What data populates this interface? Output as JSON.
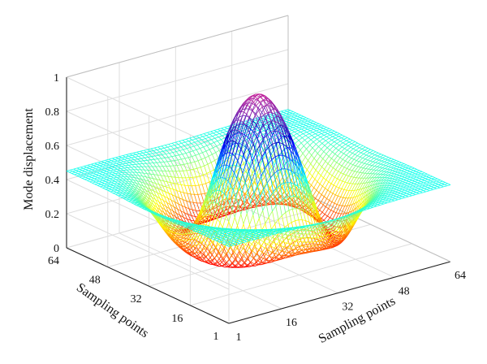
{
  "chart_data": {
    "type": "surface",
    "style": "mesh (wireframe), colored by height, jet-like colormap",
    "zlabel": "Mode displacement",
    "xlabel": "Sampling points",
    "ylabel": "Sampling points",
    "x_range": [
      1,
      64
    ],
    "y_range": [
      1,
      64
    ],
    "zlim": [
      0,
      1
    ],
    "x_ticks": [
      "1",
      "16",
      "32",
      "48",
      "64"
    ],
    "y_ticks": [
      "1",
      "16",
      "32",
      "48",
      "64"
    ],
    "z_ticks": [
      "0",
      "0.2",
      "0.4",
      "0.6",
      "0.8",
      "1"
    ],
    "grid": true,
    "grid_size": 64,
    "surface_values_approx": {
      "edge_level": 0.45,
      "central_peak": {
        "x": 32,
        "y": 32,
        "z": 0.95
      },
      "trough_depth": 0.0,
      "trough_ring_radius": 17
    }
  }
}
